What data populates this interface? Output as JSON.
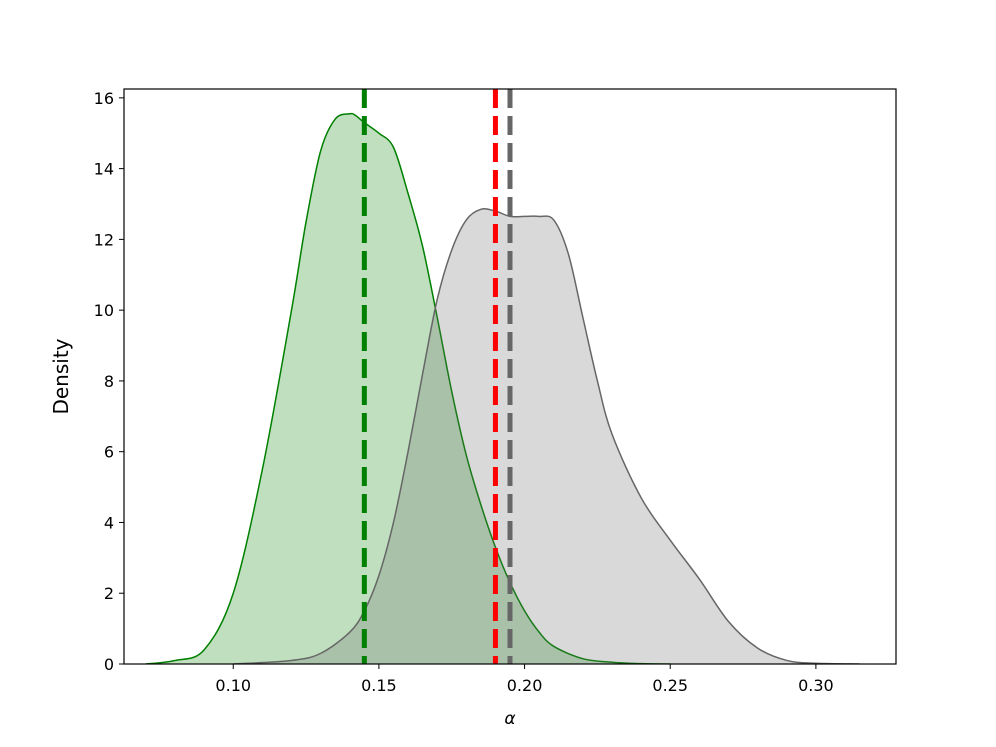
{
  "chart_data": {
    "type": "area",
    "xlabel": "α",
    "ylabel": "Density",
    "xlim": [
      0.0625,
      0.3275
    ],
    "ylim": [
      0,
      16.25
    ],
    "xticks": [
      "0.10",
      "0.15",
      "0.20",
      "0.25",
      "0.30"
    ],
    "xtick_values": [
      0.1,
      0.15,
      0.2,
      0.25,
      0.3
    ],
    "yticks": [
      "0",
      "2",
      "4",
      "6",
      "8",
      "10",
      "12",
      "14",
      "16"
    ],
    "ytick_values": [
      0,
      2,
      4,
      6,
      8,
      10,
      12,
      14,
      16
    ],
    "grid": false,
    "series": [
      {
        "color": "#008000",
        "x": [
          0.07,
          0.08,
          0.09,
          0.1,
          0.11,
          0.12,
          0.125,
          0.13,
          0.135,
          0.14,
          0.142,
          0.145,
          0.15,
          0.155,
          0.16,
          0.165,
          0.17,
          0.175,
          0.18,
          0.185,
          0.19,
          0.195,
          0.2,
          0.205,
          0.21,
          0.22,
          0.23,
          0.24,
          0.25
        ],
        "y": [
          0.0,
          0.1,
          0.4,
          2.0,
          5.5,
          10.0,
          12.5,
          14.5,
          15.4,
          15.55,
          15.5,
          15.3,
          15.0,
          14.6,
          13.3,
          11.8,
          9.8,
          7.7,
          5.9,
          4.5,
          3.3,
          2.3,
          1.5,
          0.9,
          0.5,
          0.15,
          0.05,
          0.01,
          0.0
        ],
        "mean": 0.145
      },
      {
        "color": "#666666",
        "x": [
          0.1,
          0.12,
          0.13,
          0.14,
          0.145,
          0.15,
          0.155,
          0.16,
          0.165,
          0.17,
          0.175,
          0.18,
          0.185,
          0.19,
          0.195,
          0.2,
          0.205,
          0.21,
          0.215,
          0.22,
          0.225,
          0.23,
          0.24,
          0.25,
          0.26,
          0.27,
          0.28,
          0.29,
          0.3,
          0.315
        ],
        "y": [
          0.0,
          0.1,
          0.3,
          0.9,
          1.5,
          2.5,
          4.0,
          6.0,
          8.2,
          10.3,
          11.7,
          12.55,
          12.85,
          12.8,
          12.65,
          12.65,
          12.65,
          12.55,
          11.6,
          9.8,
          8.0,
          6.5,
          4.7,
          3.5,
          2.4,
          1.2,
          0.45,
          0.1,
          0.02,
          0.0
        ],
        "mean": 0.195
      }
    ],
    "vlines": [
      {
        "x": 0.145,
        "color": "#008000"
      },
      {
        "x": 0.19,
        "color": "#ff0000"
      },
      {
        "x": 0.195,
        "color": "#666666"
      }
    ]
  }
}
